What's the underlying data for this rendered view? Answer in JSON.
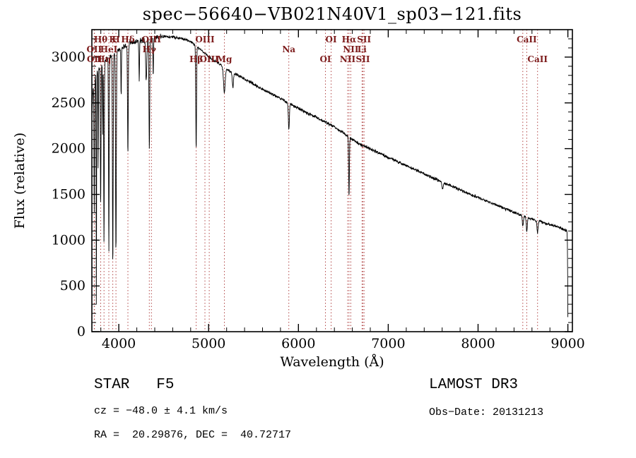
{
  "title": "spec−56640−VB021N40V1_sp03−121.fits",
  "footer": {
    "class_label": "STAR   F5",
    "survey": "LAMOST DR3",
    "cz": "cz = −48.0 ± 4.1 km/s",
    "obs_date": "Obs−Date: 20131213",
    "radec": "RA =  20.29876, DEC =  40.72717"
  },
  "chart_data": {
    "type": "line",
    "title": "spec−56640−VB021N40V1_sp03−121.fits",
    "xlabel": "Wavelength (Å)",
    "ylabel": "Flux (relative)",
    "xlim": [
      3700,
      9050
    ],
    "ylim": [
      0,
      3300
    ],
    "xticks": [
      4000,
      5000,
      6000,
      7000,
      8000,
      9000
    ],
    "yticks": [
      0,
      500,
      1000,
      1500,
      2000,
      2500,
      3000
    ],
    "x_minor_step": 200,
    "y_minor_step": 100,
    "line_color": "#000000",
    "marker_color": "#b24848",
    "marker_label_color": "#7d1c1c",
    "sample_start": 3692,
    "sample_end": 9000,
    "sample_step": 2.5,
    "noise_seed": 7,
    "noise_amplitude": 16,
    "noise_amplitude_blue": 30,
    "blue_noise_cutoff": 4500,
    "continuum": [
      [
        3690,
        60
      ],
      [
        3694,
        1300
      ],
      [
        3700,
        2380
      ],
      [
        3710,
        2600
      ],
      [
        3725,
        2760
      ],
      [
        3760,
        2830
      ],
      [
        3800,
        2900
      ],
      [
        3850,
        2960
      ],
      [
        3900,
        3010
      ],
      [
        3950,
        3040
      ],
      [
        4000,
        3080
      ],
      [
        4100,
        3140
      ],
      [
        4200,
        3170
      ],
      [
        4300,
        3190
      ],
      [
        4400,
        3210
      ],
      [
        4500,
        3225
      ],
      [
        4600,
        3220
      ],
      [
        4700,
        3205
      ],
      [
        4800,
        3170
      ],
      [
        4850,
        3135
      ],
      [
        4900,
        3090
      ],
      [
        5000,
        3005
      ],
      [
        5100,
        2940
      ],
      [
        5200,
        2870
      ],
      [
        5300,
        2815
      ],
      [
        5400,
        2760
      ],
      [
        5500,
        2705
      ],
      [
        5600,
        2650
      ],
      [
        5700,
        2600
      ],
      [
        5800,
        2550
      ],
      [
        5900,
        2490
      ],
      [
        6000,
        2440
      ],
      [
        6100,
        2390
      ],
      [
        6200,
        2340
      ],
      [
        6300,
        2290
      ],
      [
        6400,
        2240
      ],
      [
        6500,
        2170
      ],
      [
        6600,
        2100
      ],
      [
        6700,
        2040
      ],
      [
        6800,
        2000
      ],
      [
        6900,
        1950
      ],
      [
        7000,
        1905
      ],
      [
        7100,
        1860
      ],
      [
        7200,
        1815
      ],
      [
        7300,
        1770
      ],
      [
        7400,
        1725
      ],
      [
        7500,
        1680
      ],
      [
        7600,
        1635
      ],
      [
        7700,
        1595
      ],
      [
        7800,
        1550
      ],
      [
        7900,
        1505
      ],
      [
        8000,
        1465
      ],
      [
        8100,
        1425
      ],
      [
        8200,
        1385
      ],
      [
        8300,
        1345
      ],
      [
        8400,
        1305
      ],
      [
        8500,
        1265
      ],
      [
        8600,
        1230
      ],
      [
        8700,
        1200
      ],
      [
        8800,
        1170
      ],
      [
        8900,
        1140
      ],
      [
        8960,
        1115
      ],
      [
        8990,
        1100
      ],
      [
        8995,
        950
      ],
      [
        9000,
        80
      ]
    ],
    "absorption_lines": [
      {
        "center": 3727,
        "depth": 1450,
        "width": 5
      },
      {
        "center": 3750,
        "depth": 2600,
        "width": 3.5
      },
      {
        "center": 3770,
        "depth": 1100,
        "width": 3
      },
      {
        "center": 3798,
        "depth": 1550,
        "width": 5
      },
      {
        "center": 3820,
        "depth": 800,
        "width": 3
      },
      {
        "center": 3835,
        "depth": 2000,
        "width": 5
      },
      {
        "center": 3889,
        "depth": 2150,
        "width": 5
      },
      {
        "center": 3933,
        "depth": 2300,
        "width": 6
      },
      {
        "center": 3968,
        "depth": 2200,
        "width": 6
      },
      {
        "center": 4026,
        "depth": 550,
        "width": 4
      },
      {
        "center": 4101,
        "depth": 1200,
        "width": 6
      },
      {
        "center": 4227,
        "depth": 420,
        "width": 5
      },
      {
        "center": 4305,
        "depth": 430,
        "width": 9
      },
      {
        "center": 4340,
        "depth": 1230,
        "width": 6
      },
      {
        "center": 4383,
        "depth": 380,
        "width": 5
      },
      {
        "center": 4861,
        "depth": 1130,
        "width": 6
      },
      {
        "center": 5175,
        "depth": 270,
        "width": 13
      },
      {
        "center": 5270,
        "depth": 170,
        "width": 9
      },
      {
        "center": 5893,
        "depth": 290,
        "width": 8
      },
      {
        "center": 6563,
        "depth": 640,
        "width": 6
      },
      {
        "center": 7605,
        "depth": 70,
        "width": 11
      },
      {
        "center": 8498,
        "depth": 110,
        "width": 8
      },
      {
        "center": 8542,
        "depth": 150,
        "width": 8
      },
      {
        "center": 8662,
        "depth": 130,
        "width": 8
      }
    ],
    "spectral_markers": {
      "rows": [
        {
          "dy": 18,
          "labels": [
            {
              "text": "Hθ",
              "wavelength": 3798
            },
            {
              "text": "K",
              "wavelength": 3933
            },
            {
              "text": "H",
              "wavelength": 3968
            },
            {
              "text": "Hδ",
              "wavelength": 4101
            },
            {
              "text": "OIII",
              "wavelength": 4363
            },
            {
              "text": "OIII",
              "wavelength": 4959
            },
            {
              "text": "OI",
              "wavelength": 6364
            },
            {
              "text": "Hα",
              "wavelength": 6563
            },
            {
              "text": "SII",
              "wavelength": 6731
            },
            {
              "text": "CaII",
              "wavelength": 8542
            }
          ]
        },
        {
          "dy": 32,
          "labels": [
            {
              "text": "OII",
              "wavelength": 3726
            },
            {
              "text": "HeI",
              "wavelength": 3889
            },
            {
              "text": "Hγ",
              "wavelength": 4340
            },
            {
              "text": "Na",
              "wavelength": 5893
            },
            {
              "text": "NII",
              "wavelength": 6583
            },
            {
              "text": "Li",
              "wavelength": 6708
            }
          ]
        },
        {
          "dy": 46,
          "labels": [
            {
              "text": "OII",
              "wavelength": 3729
            },
            {
              "text": "Hη",
              "wavelength": 3835
            },
            {
              "text": "Hβ",
              "wavelength": 4861
            },
            {
              "text": "OIII",
              "wavelength": 5007
            },
            {
              "text": "Mg",
              "wavelength": 5175
            },
            {
              "text": "OI",
              "wavelength": 6300
            },
            {
              "text": "NII",
              "wavelength": 6548
            },
            {
              "text": "SII",
              "wavelength": 6717
            },
            {
              "text": "CaII",
              "wavelength": 8662
            }
          ]
        }
      ],
      "extra_lines": [
        8498
      ]
    }
  }
}
